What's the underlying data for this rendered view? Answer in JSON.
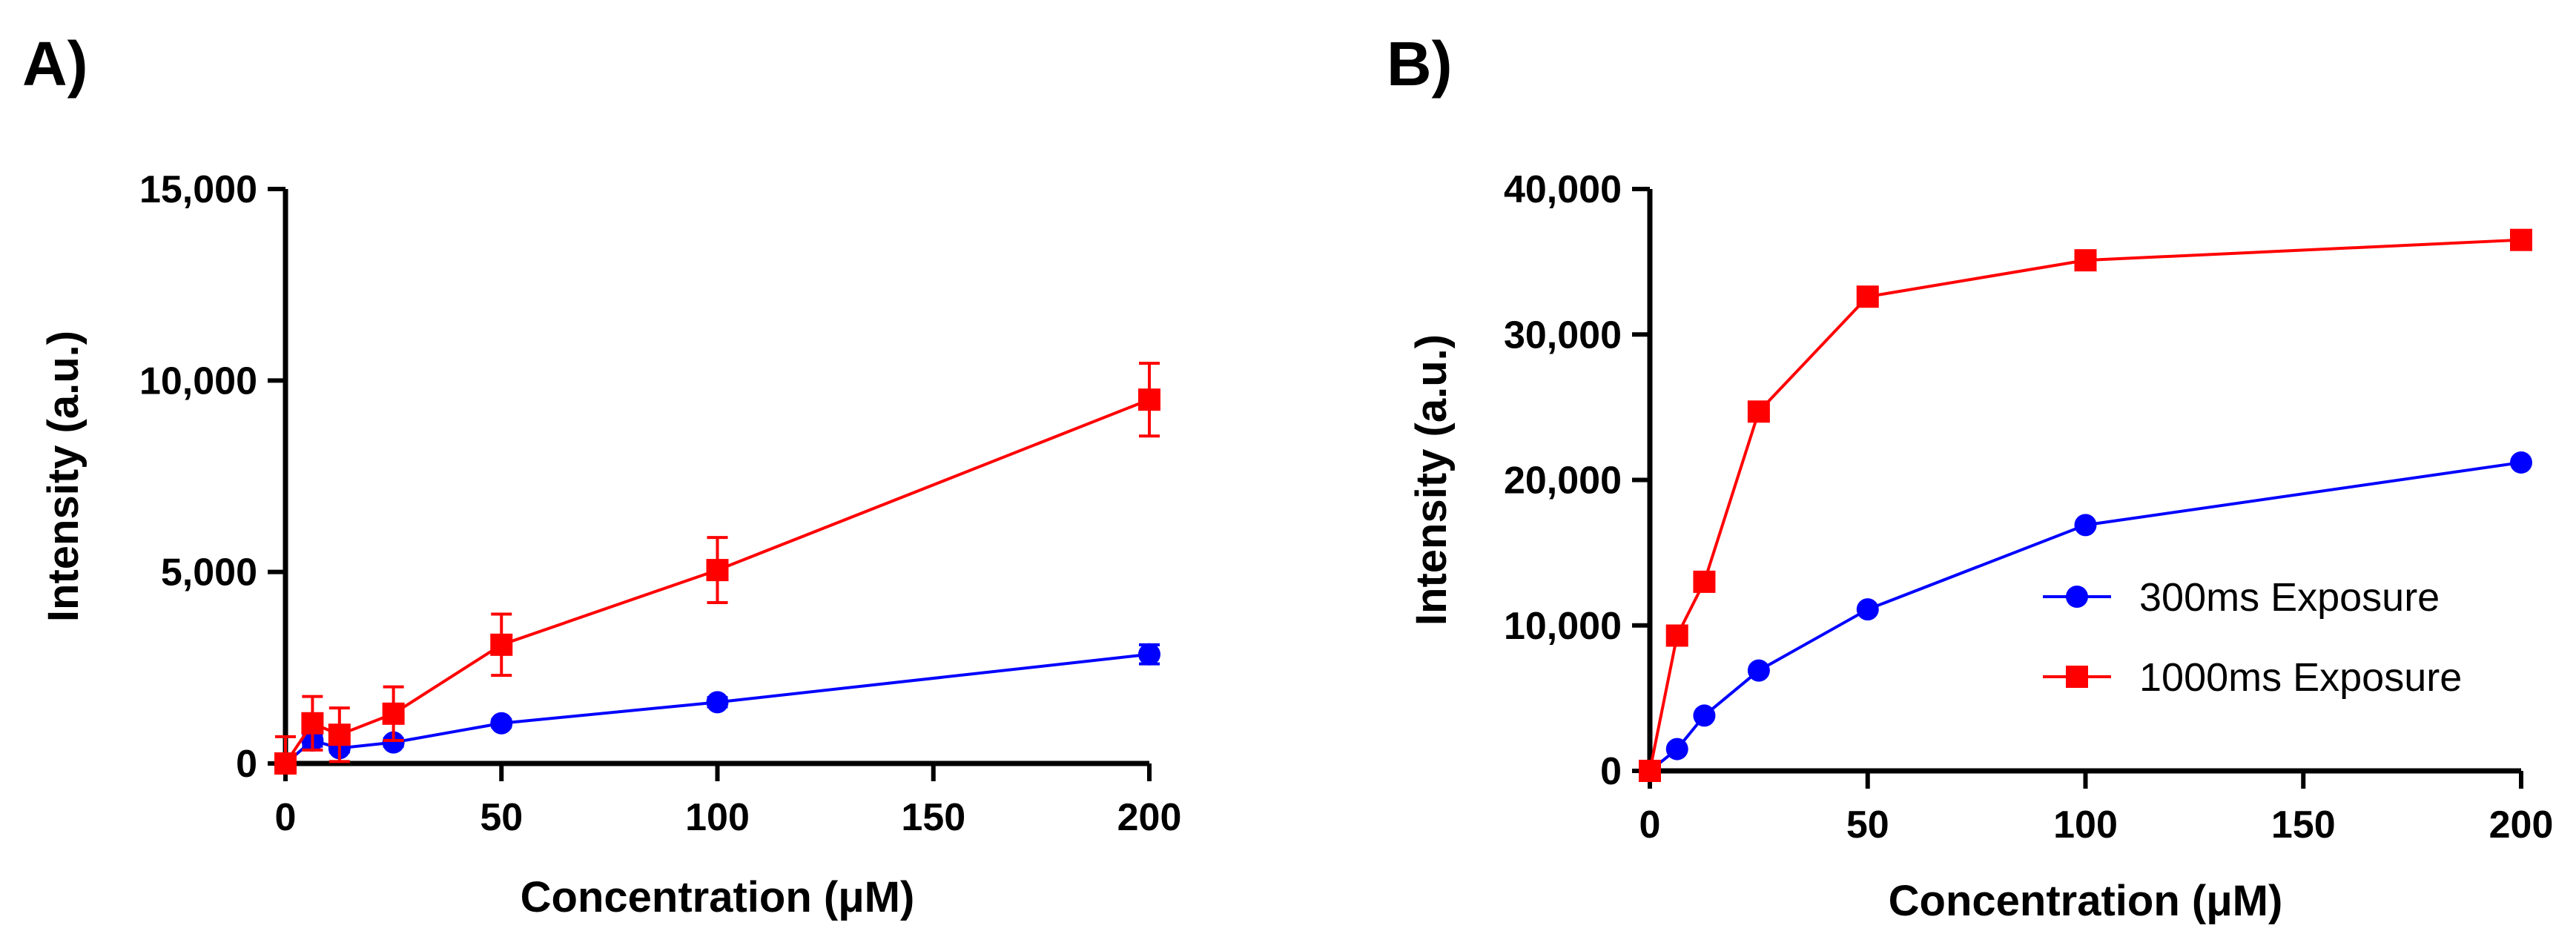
{
  "panels": {
    "a": {
      "label": "A)"
    },
    "b": {
      "label": "B)"
    }
  },
  "chart_data": [
    {
      "id": "A",
      "type": "line",
      "title": "",
      "xlabel": "Concentration (μM)",
      "ylabel": "Intensity (a.u.)",
      "xlim": [
        0,
        200
      ],
      "ylim": [
        0,
        15000
      ],
      "xticks": [
        0,
        50,
        100,
        150,
        200
      ],
      "yticks": [
        0,
        5000,
        10000,
        15000
      ],
      "xtick_labels": [
        "0",
        "50",
        "100",
        "150",
        "200"
      ],
      "ytick_labels": [
        "0",
        "5,000",
        "10,000",
        "15,000"
      ],
      "grid": false,
      "legend": false,
      "series": [
        {
          "name": "300ms Exposure",
          "color": "#0000ff",
          "marker": "circle",
          "x": [
            0,
            6.25,
            12.5,
            25,
            50,
            100,
            200
          ],
          "y": [
            0,
            600,
            400,
            550,
            1050,
            1600,
            2850
          ],
          "err": [
            0,
            150,
            100,
            100,
            100,
            120,
            250
          ]
        },
        {
          "name": "1000ms Exposure",
          "color": "#ff0000",
          "marker": "square",
          "x": [
            0,
            6.25,
            12.5,
            25,
            50,
            100,
            200
          ],
          "y": [
            0,
            1050,
            750,
            1300,
            3100,
            5050,
            9500
          ],
          "err": [
            700,
            700,
            700,
            700,
            800,
            850,
            950
          ]
        }
      ]
    },
    {
      "id": "B",
      "type": "line",
      "title": "",
      "xlabel": "Concentration (μM)",
      "ylabel": "Intensity (a.u.)",
      "xlim": [
        0,
        200
      ],
      "ylim": [
        0,
        40000
      ],
      "xticks": [
        0,
        50,
        100,
        150,
        200
      ],
      "yticks": [
        0,
        10000,
        20000,
        30000,
        40000
      ],
      "xtick_labels": [
        "0",
        "50",
        "100",
        "150",
        "200"
      ],
      "ytick_labels": [
        "0",
        "10,000",
        "20,000",
        "30,000",
        "40,000"
      ],
      "grid": false,
      "legend": true,
      "legend_position": "center-right",
      "series": [
        {
          "name": "300ms Exposure",
          "color": "#0000ff",
          "marker": "circle",
          "x": [
            0,
            6.25,
            12.5,
            25,
            50,
            100,
            200
          ],
          "y": [
            0,
            1500,
            3800,
            6900,
            11100,
            16900,
            21200
          ],
          "err": [
            0,
            0,
            0,
            0,
            0,
            0,
            0
          ]
        },
        {
          "name": "1000ms Exposure",
          "color": "#ff0000",
          "marker": "square",
          "x": [
            0,
            6.25,
            12.5,
            25,
            50,
            100,
            200
          ],
          "y": [
            0,
            9300,
            13000,
            24700,
            32600,
            35100,
            36500
          ],
          "err": [
            0,
            0,
            0,
            0,
            0,
            0,
            0
          ]
        }
      ]
    }
  ]
}
